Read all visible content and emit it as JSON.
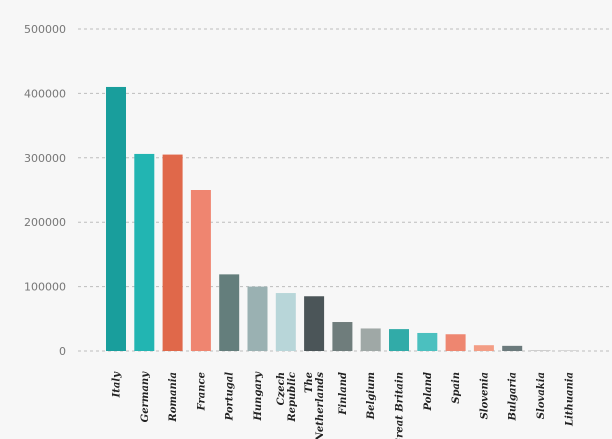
{
  "chart_data": {
    "type": "bar",
    "title": "",
    "xlabel": "",
    "ylabel": "",
    "ylim": [
      0,
      500000
    ],
    "yticks": [
      0,
      100000,
      200000,
      300000,
      400000,
      500000
    ],
    "ytick_labels": [
      "0",
      "100000",
      "200000",
      "300000",
      "400000",
      "500000"
    ],
    "grid": true,
    "legend": "none",
    "categories": [
      [
        "Italy"
      ],
      [
        "Germany"
      ],
      [
        "Romania"
      ],
      [
        "France"
      ],
      [
        "Portugal"
      ],
      [
        "Hungary"
      ],
      [
        "Czech",
        "Republic"
      ],
      [
        "The",
        "Netherlands"
      ],
      [
        "Finland"
      ],
      [
        "Belgium"
      ],
      [
        "Great Britain"
      ],
      [
        "Poland"
      ],
      [
        "Spain"
      ],
      [
        "Slovenia"
      ],
      [
        "Bulgaria"
      ],
      [
        "Slovakia"
      ],
      [
        "Lithuania"
      ]
    ],
    "values": [
      410000,
      306000,
      305000,
      250000,
      119000,
      100000,
      90000,
      85000,
      45000,
      35000,
      34000,
      28000,
      26000,
      9000,
      8000,
      1000,
      500
    ],
    "colors": [
      "#199e9c",
      "#22b5b2",
      "#e0684a",
      "#ef8570",
      "#647e7c",
      "#9ab1b2",
      "#b8d6d9",
      "#4b5558",
      "#6f7d7c",
      "#9fa8a6",
      "#31aba8",
      "#4bc0bf",
      "#ee8670",
      "#f39d85",
      "#6b7a7c",
      "#b8b8b8",
      "#c2c2c2"
    ]
  }
}
